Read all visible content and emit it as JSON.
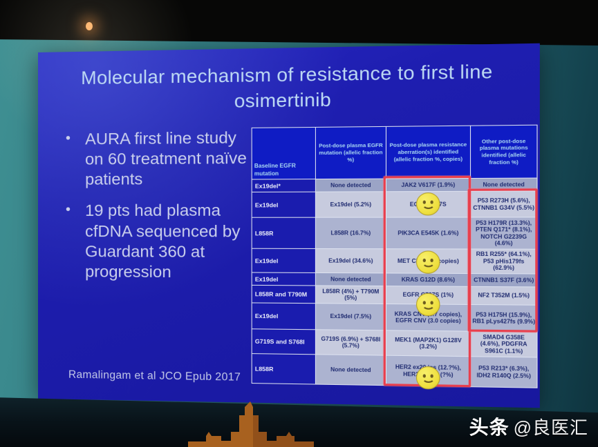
{
  "slide": {
    "title": "Molecular mechanism of resistance to first line osimertinib",
    "bullets": [
      "AURA first line study on 60 treatment naïve patients",
      "19 pts had plasma cfDNA sequenced by Guardant 360 at progression"
    ],
    "citation": "Ramalingam et al JCO Epub 2017"
  },
  "table": {
    "headers": [
      "Baseline EGFR mutation",
      "Post-dose plasma EGFR mutation (allelic fraction %)",
      "Post-dose plasma resistance aberration(s) identified (allelic fraction %, copies)",
      "Other post-dose plasma mutations identified (allelic fraction %)"
    ],
    "rows": [
      {
        "baseline": "Ex19del*",
        "post_dose_egfr": "None detected",
        "resistance": "JAK2 V617F (1.9%)",
        "other": "None detected",
        "smiley": false,
        "shade": "dark"
      },
      {
        "baseline": "Ex19del",
        "post_dose_egfr": "Ex19del (5.2%)",
        "resistance": "EGFR C797S",
        "other": "P53 R273H (5.6%), CTNNB1 G34V (5.5%)",
        "smiley": true,
        "shade": "light"
      },
      {
        "baseline": "L858R",
        "post_dose_egfr": "L858R (16.7%)",
        "resistance": "PIK3CA E545K (1.6%)",
        "other": "P53 H179R (13.3%), PTEN Q171* (8.1%), NOTCH G2239G (4.6%)",
        "smiley": false,
        "shade": "mid"
      },
      {
        "baseline": "Ex19del",
        "post_dose_egfr": "Ex19del (34.6%)",
        "resistance": "MET CNV (3.0 copies)",
        "other": "RB1 R255* (64.1%), P53 pHis179fs (62.9%)",
        "smiley": true,
        "shade": "light"
      },
      {
        "baseline": "Ex19del",
        "post_dose_egfr": "None detected",
        "resistance": "KRAS G12D (8.6%)",
        "other": "CTNNB1 S37F (3.6%)",
        "smiley": false,
        "shade": "dark"
      },
      {
        "baseline": "L858R and T790M",
        "post_dose_egfr": "L858R (4%) + T790M (5%)",
        "resistance": "EGFR C797S (1%)",
        "other": "NF2 T352M (1.5%)",
        "smiley": true,
        "shade": "light"
      },
      {
        "baseline": "Ex19del",
        "post_dose_egfr": "Ex19del (7.5%)",
        "resistance": "KRAS CNV (3.7 copies), EGFR CNV (3.0 copies)",
        "other": "P53 H175H (15.9%), RB1 pLys427fs (9.9%)",
        "smiley": false,
        "shade": "mid"
      },
      {
        "baseline": "G719S and S768I",
        "post_dose_egfr": "G719S (6.9%) + S768I (5.7%)",
        "resistance": "MEK1 (MAP2K1) G128V (3.2%)",
        "other": "SMAD4 G358E (4.6%), PDGFRA S961C (1.1%)",
        "smiley": false,
        "shade": "light"
      },
      {
        "baseline": "L858R",
        "post_dose_egfr": "None detected",
        "resistance": "HER2 ex20 ins (12.?%), HER2 E12?? (?%)",
        "other": "P53 R213* (6.3%), IDH2 R140Q (2.5%)",
        "smiley": true,
        "shade": "mid"
      }
    ],
    "highlights": [
      {
        "column": "resistance",
        "from_row": 0,
        "to_row": 8
      },
      {
        "column": "other",
        "from_row": 1,
        "to_row": 6
      }
    ]
  },
  "icons": {
    "smiley": "smiley-face",
    "light": "stage-light",
    "tower": "building-silhouette"
  },
  "watermark": {
    "brand": "头条",
    "handle": "@良医汇"
  },
  "colors": {
    "slide_blue": "#1e1eb0",
    "header_blue": "#0f1cc4",
    "highlight_red": "#e8404e",
    "smiley_yellow": "#eedf3e",
    "teal_background": "#2e767d",
    "tower_orange": "#a8611f",
    "cell_light": "#c7cbde",
    "cell_mid": "#acb3d0",
    "cell_dark": "#9ba4c6"
  }
}
